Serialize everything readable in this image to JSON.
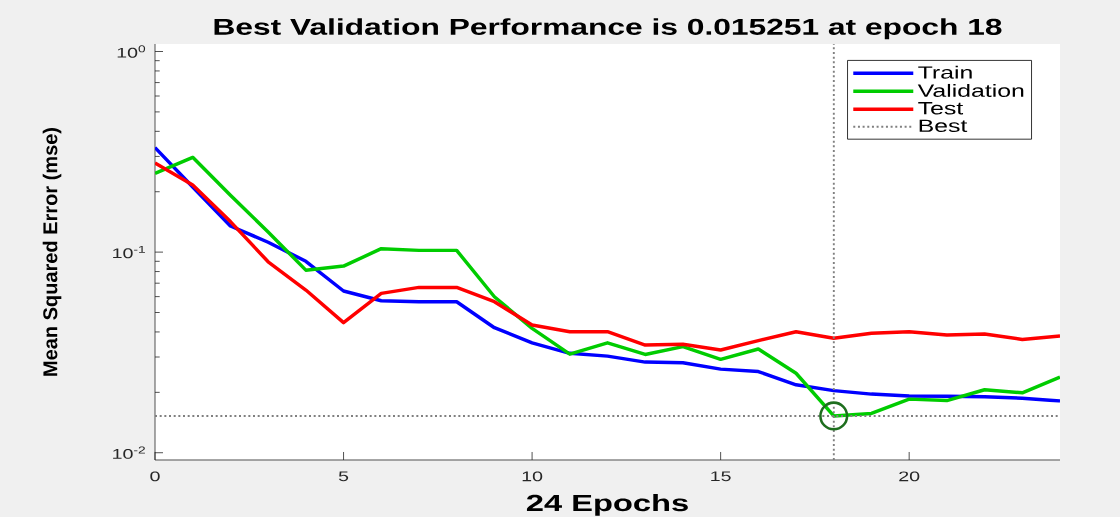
{
  "chart_data": {
    "type": "line",
    "title": "Best Validation Performance is 0.015251 at epoch 18",
    "xlabel": "24 Epochs",
    "ylabel": "Mean Squared Error (mse)",
    "x": [
      0,
      1,
      2,
      3,
      4,
      5,
      6,
      7,
      8,
      9,
      10,
      11,
      12,
      13,
      14,
      15,
      16,
      17,
      18,
      19,
      20,
      21,
      22,
      23,
      24
    ],
    "series": [
      {
        "name": "Train",
        "color": "#0000ff",
        "values": [
          0.332,
          0.211,
          0.135,
          0.112,
          0.09,
          0.064,
          0.0572,
          0.0566,
          0.0566,
          0.042,
          0.0353,
          0.0313,
          0.0303,
          0.0283,
          0.0281,
          0.0261,
          0.0254,
          0.0218,
          0.0204,
          0.0196,
          0.0192,
          0.0191,
          0.019,
          0.0187,
          0.0181
        ]
      },
      {
        "name": "Validation",
        "color": "#00cc00",
        "values": [
          0.247,
          0.297,
          0.192,
          0.126,
          0.0813,
          0.0852,
          0.104,
          0.102,
          0.102,
          0.0599,
          0.0417,
          0.031,
          0.0353,
          0.0309,
          0.0338,
          0.0292,
          0.0329,
          0.0249,
          0.015251,
          0.0157,
          0.0185,
          0.0182,
          0.0206,
          0.0199,
          0.0238
        ]
      },
      {
        "name": "Test",
        "color": "#ff0000",
        "values": [
          0.278,
          0.216,
          0.142,
          0.0895,
          0.0647,
          0.0445,
          0.0623,
          0.0667,
          0.0667,
          0.0566,
          0.0433,
          0.0401,
          0.0401,
          0.0344,
          0.0347,
          0.0325,
          0.0362,
          0.0401,
          0.0372,
          0.0394,
          0.0401,
          0.0386,
          0.0391,
          0.0367,
          0.0382
        ]
      },
      {
        "name": "Best",
        "color": "#808080",
        "line_style": "dotted",
        "x": [
          0,
          24
        ],
        "values": [
          0.015251,
          0.015251
        ]
      },
      {
        "type": "scatter",
        "x": [
          18
        ],
        "values": [
          0.015251
        ],
        "color": "#1e6e1e",
        "marker": "circle"
      }
    ],
    "xlim": [
      0,
      24
    ],
    "xticks": [
      0,
      5,
      10,
      15,
      20
    ],
    "ylim": [
      0.0092,
      1.09
    ],
    "yticks": [
      {
        "value": 0.01,
        "label": "10$^{-2}$"
      },
      {
        "value": 0.1,
        "label": "10$^{-1}$"
      },
      {
        "value": 1,
        "label": "10$^{0}$"
      }
    ],
    "log": "y",
    "marker": "none",
    "line_style": "solid",
    "legend": "top right",
    "ref_lines": [
      {
        "axis": "x",
        "value": 18,
        "color": "#808080",
        "line_style": "dotted"
      }
    ]
  }
}
